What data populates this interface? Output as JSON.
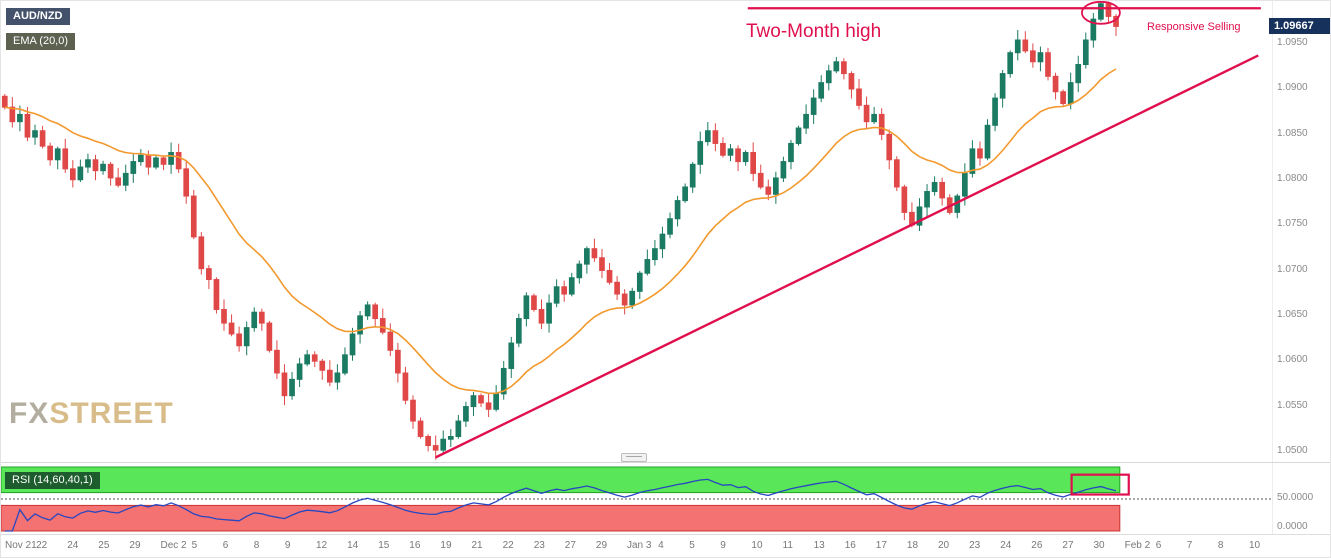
{
  "header": {
    "symbol": "AUD/NZD",
    "ema_label": "EMA (20,0)"
  },
  "watermark": {
    "part1": "FX",
    "part2": "STREET"
  },
  "annotations": {
    "two_month_high": "Two-Month high",
    "responsive_selling": "Responsive Selling",
    "accent_color": "#e0104e"
  },
  "price_axis": {
    "ticks": [
      "1.0950",
      "1.0900",
      "1.0850",
      "1.0800",
      "1.0750",
      "1.0700",
      "1.0650",
      "1.0600",
      "1.0550",
      "1.0500"
    ],
    "current_price": "1.09667",
    "label_bg": "#16325c"
  },
  "x_axis": {
    "labels": [
      "Nov 21",
      "22",
      "24",
      "25",
      "29",
      "Dec 2",
      "5",
      "6",
      "8",
      "9",
      "12",
      "14",
      "15",
      "16",
      "19",
      "21",
      "22",
      "23",
      "27",
      "29",
      "Jan 3",
      "4",
      "5",
      "9",
      "10",
      "11",
      "13",
      "16",
      "17",
      "18",
      "20",
      "23",
      "24",
      "26",
      "27",
      "30",
      "Feb 2",
      "6",
      "7",
      "8",
      "10"
    ]
  },
  "rsi_panel": {
    "label": "RSI (14,60,40,1)",
    "mid_label": "50.0000",
    "zero_label": "0.0000",
    "upper_level": 60,
    "lower_level": 40,
    "band_green": "#59e659",
    "band_green_border": "#22a022",
    "band_red": "#f47272",
    "band_red_border": "#cc3333",
    "line_color": "#2747c0"
  },
  "chart_data": {
    "type": "candlestick",
    "price_domain": [
      1.0488,
      1.0995
    ],
    "total_slots": 168,
    "up_color": "#1a7a62",
    "down_color": "#e04848",
    "ema_color": "#f2992e",
    "ema_period": 20,
    "rsi_period": 14,
    "closes": [
      1.0878,
      1.0862,
      1.087,
      1.0845,
      1.0852,
      1.0835,
      1.082,
      1.0832,
      1.081,
      1.0798,
      1.0812,
      1.082,
      1.0808,
      1.0815,
      1.08,
      1.0792,
      1.0805,
      1.0818,
      1.0825,
      1.0812,
      1.0822,
      1.0815,
      1.0828,
      1.081,
      1.078,
      1.0735,
      1.07,
      1.0688,
      1.0655,
      1.064,
      1.0628,
      1.0615,
      1.0635,
      1.0652,
      1.064,
      1.061,
      1.0585,
      1.056,
      1.0578,
      1.0595,
      1.0605,
      1.0598,
      1.0588,
      1.0575,
      1.0585,
      1.0605,
      1.0628,
      1.0648,
      1.066,
      1.0645,
      1.063,
      1.061,
      1.0585,
      1.0555,
      1.0532,
      1.0515,
      1.0505,
      1.05,
      1.0512,
      1.0515,
      1.0532,
      1.0548,
      1.056,
      1.0552,
      1.0545,
      1.0562,
      1.059,
      1.0618,
      1.0645,
      1.067,
      1.0655,
      1.064,
      1.0662,
      1.068,
      1.0672,
      1.069,
      1.0705,
      1.0722,
      1.0712,
      1.0698,
      1.0685,
      1.0672,
      1.066,
      1.0675,
      1.0695,
      1.071,
      1.0722,
      1.0738,
      1.0755,
      1.0775,
      1.079,
      1.0815,
      1.084,
      1.0852,
      1.0838,
      1.0825,
      1.0832,
      1.0818,
      1.0828,
      1.0805,
      1.079,
      1.0782,
      1.08,
      1.0818,
      1.0838,
      1.0855,
      1.087,
      1.0888,
      1.0905,
      1.0918,
      1.0928,
      1.0915,
      1.0898,
      1.088,
      1.0862,
      1.087,
      1.0848,
      1.082,
      1.079,
      1.0762,
      1.0748,
      1.0768,
      1.0785,
      1.0795,
      1.0778,
      1.0762,
      1.078,
      1.0805,
      1.0832,
      1.0822,
      1.0858,
      1.0888,
      1.0915,
      1.0938,
      1.0952,
      1.094,
      1.0928,
      1.0938,
      1.0912,
      1.0895,
      1.0882,
      1.0905,
      1.0925,
      1.0952,
      1.0975,
      1.0992,
      1.0978,
      1.0967
    ],
    "trendline": {
      "start_index": 57,
      "start_price": 1.0492,
      "end_x_fraction": 0.99,
      "end_price": 1.0935
    },
    "resistance": {
      "price": 1.0987,
      "start_fraction": 0.588,
      "end_fraction": 0.992
    },
    "circle": {
      "index": 145,
      "price": 1.0982
    },
    "rsi_highlight": {
      "x_start_fraction": 0.843,
      "x_end_fraction": 0.888,
      "top_value": 88,
      "bottom_value": 57
    }
  }
}
